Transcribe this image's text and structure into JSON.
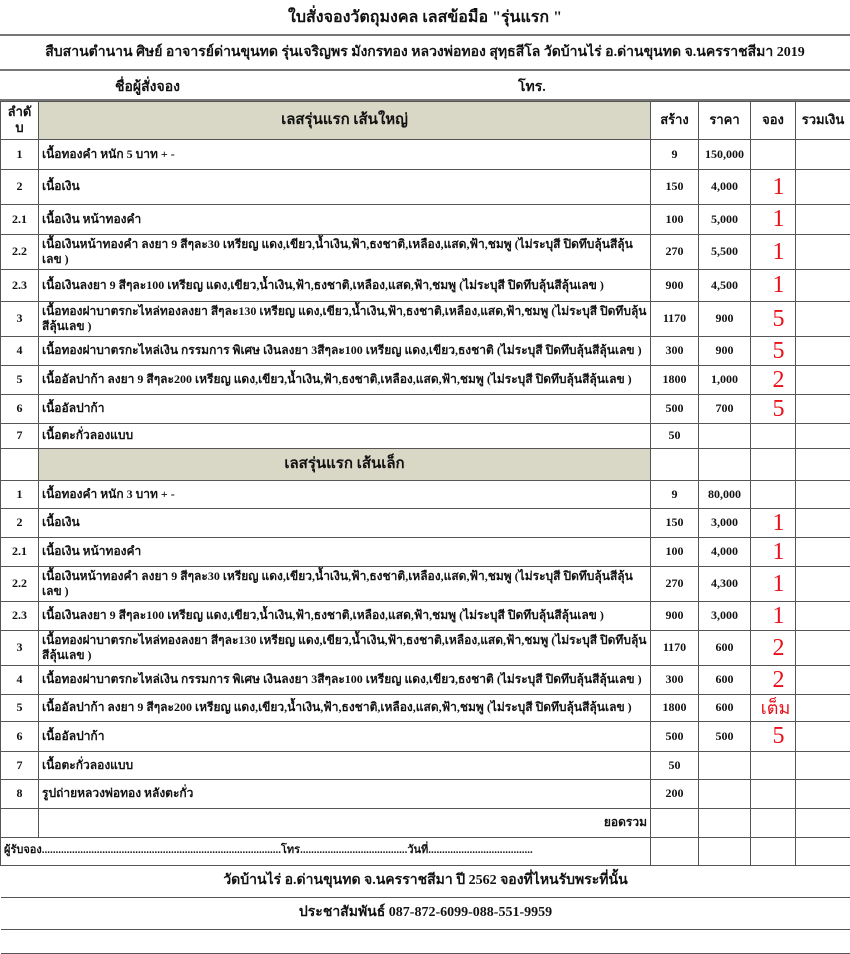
{
  "title": "ใบสั่งจองวัตถุมงคล เลสข้อมือ \"รุ่นแรก \"",
  "subtitle": "สืบสานตำนาน ศิษย์ อาจารย์ด่านขุนทด รุ่นเจริญพร มังกรทอง  หลวงพ่อทอง สุทฺธสีโล วัดบ้านไร่ อ.ด่านขุนทด จ.นครราชสีมา 2019",
  "orderer_label": "ชื่อผู้สั่งจอง",
  "phone_label": "โทร.",
  "columns": {
    "no": "ลำดับ",
    "build": "สร้าง",
    "price": "ราคา",
    "reserve": "จอง",
    "total": "รวมเงิน"
  },
  "sections": [
    {
      "title": "เลสรุ่นแรก เส้นใหญ่",
      "rows": [
        {
          "no": "1",
          "desc": "เนื้อทองคำ    หนัก 5 บาท  + -",
          "build": "9",
          "price": "150,000",
          "reserve": ""
        },
        {
          "no": "2",
          "desc": "เนื้อเงิน",
          "build": "150",
          "price": "4,000",
          "reserve": "1"
        },
        {
          "no": "2.1",
          "desc": "เนื้อเงิน หน้าทองคำ",
          "build": "100",
          "price": "5,000",
          "reserve": "1"
        },
        {
          "no": "2.2",
          "desc": "เนื้อเงินหน้าทองคำ ลงยา 9 สีๆละ30 เหรียญ แดง,เขียว,น้ำเงิน,ฟ้า,ธงชาติ,เหลือง,แสด,ฟ้า,ชมพู (ไม่ระบุสี ปิดทึบลุ้นสีลุ้นเลข )",
          "build": "270",
          "price": "5,500",
          "reserve": "1"
        },
        {
          "no": "2.3",
          "desc": "เนื้อเงินลงยา 9 สีๆละ100 เหรียญ แดง,เขียว,น้ำเงิน,ฟ้า,ธงชาติ,เหลือง,แสด,ฟ้า,ชมพู            (ไม่ระบุสี ปิดทึบลุ้นสีลุ้นเลข )",
          "build": "900",
          "price": "4,500",
          "reserve": "1"
        },
        {
          "no": "3",
          "desc": "เนื้อทองฝาบาตรกะไหล่ทองลงยา สีๆละ130 เหรียญ แดง,เขียว,น้ำเงิน,ฟ้า,ธงชาติ,เหลือง,แสด,ฟ้า,ชมพู (ไม่ระบุสี ปิดทึบลุ้นสีลุ้นเลข )",
          "build": "1170",
          "price": "900",
          "reserve": "5"
        },
        {
          "no": "4",
          "desc": "เนื้อทองฝาบาตรกะไหล่เงิน  กรรมการ พิเศษ เงินลงยา 3สีๆละ100 เหรียญ แดง,เขียว,ธงชาติ    (ไม่ระบุสี ปิดทึบลุ้นสีลุ้นเลข )",
          "build": "300",
          "price": "900",
          "reserve": "5"
        },
        {
          "no": "5",
          "desc": "เนื้ออัลปาก้า ลงยา 9 สีๆละ200  เหรียญ แดง,เขียว,น้ำเงิน,ฟ้า,ธงชาติ,เหลือง,แสด,ฟ้า,ชมพู      (ไม่ระบุสี ปิดทึบลุ้นสีลุ้นเลข )",
          "build": "1800",
          "price": "1,000",
          "reserve": "2"
        },
        {
          "no": "6",
          "desc": "เนื้ออัลปาก้า",
          "build": "500",
          "price": "700",
          "reserve": "5"
        },
        {
          "no": "7",
          "desc": "เนื้อตะกั่วลองแบบ",
          "build": "50",
          "price": "",
          "reserve": ""
        }
      ]
    },
    {
      "title": "เลสรุ่นแรก เส้นเล็ก",
      "rows": [
        {
          "no": "1",
          "desc": "เนื้อทองคำ    หนัก 3 บาท    + -",
          "build": "9",
          "price": "80,000",
          "reserve": ""
        },
        {
          "no": "2",
          "desc": "เนื้อเงิน",
          "build": "150",
          "price": "3,000",
          "reserve": "1"
        },
        {
          "no": "2.1",
          "desc": "เนื้อเงิน หน้าทองคำ",
          "build": "100",
          "price": "4,000",
          "reserve": "1"
        },
        {
          "no": "2.2",
          "desc": "เนื้อเงินหน้าทองคำ ลงยา 9 สีๆละ30 เหรียญ แดง,เขียว,น้ำเงิน,ฟ้า,ธงชาติ,เหลือง,แสด,ฟ้า,ชมพู (ไม่ระบุสี ปิดทึบลุ้นสีลุ้นเลข )",
          "build": "270",
          "price": "4,300",
          "reserve": "1"
        },
        {
          "no": "2.3",
          "desc": "เนื้อเงินลงยา 9 สีๆละ100 เหรียญ แดง,เขียว,น้ำเงิน,ฟ้า,ธงชาติ,เหลือง,แสด,ฟ้า,ชมพู            (ไม่ระบุสี ปิดทึบลุ้นสีลุ้นเลข )",
          "build": "900",
          "price": "3,000",
          "reserve": "1"
        },
        {
          "no": "3",
          "desc": "เนื้อทองฝาบาตรกะไหล่ทองลงยา สีๆละ130 เหรียญ แดง,เขียว,น้ำเงิน,ฟ้า,ธงชาติ,เหลือง,แสด,ฟ้า,ชมพู (ไม่ระบุสี ปิดทึบลุ้นสีลุ้นเลข )",
          "build": "1170",
          "price": "600",
          "reserve": "2"
        },
        {
          "no": "4",
          "desc": "เนื้อทองฝาบาตรกะไหล่เงิน  กรรมการ พิเศษ เงินลงยา 3สีๆละ100 เหรียญ แดง,เขียว,ธงชาติ    (ไม่ระบุสี ปิดทึบลุ้นสีลุ้นเลข )",
          "build": "300",
          "price": "600",
          "reserve": "2"
        },
        {
          "no": "5",
          "desc": "เนื้ออัลปาก้า ลงยา 9 สีๆละ200  เหรียญ แดง,เขียว,น้ำเงิน,ฟ้า,ธงชาติ,เหลือง,แสด,ฟ้า,ชมพู      (ไม่ระบุสี ปิดทึบลุ้นสีลุ้นเลข )",
          "build": "1800",
          "price": "600",
          "reserve": "เต็ม"
        },
        {
          "no": "6",
          "desc": "เนื้ออัลปาก้า",
          "build": "500",
          "price": "500",
          "reserve": "5"
        },
        {
          "no": "7",
          "desc": "เนื้อตะกั่วลองแบบ",
          "build": "50",
          "price": "",
          "reserve": ""
        },
        {
          "no": "8",
          "desc": "รูปถ่ายหลวงพ่อทอง หลังตะกั่ว",
          "build": "200",
          "price": "",
          "reserve": ""
        }
      ]
    }
  ],
  "grand_total_label": "ยอดรวม",
  "receiver_line": "ผู้รับจอง.......................................................................................โทร.......................................วันที่......................................",
  "footer_1": "วัดบ้านไร่ อ.ด่านขุนทด จ.นครราชสีมา ปี 2562 จองที่ไหนรับพระที่นั้น",
  "footer_2": "ประชาสัมพันธ์ 087-872-6099-088-551-9959",
  "colors": {
    "reserve_mark": "#e8101a",
    "section_header_bg": "#d9d7c6"
  }
}
